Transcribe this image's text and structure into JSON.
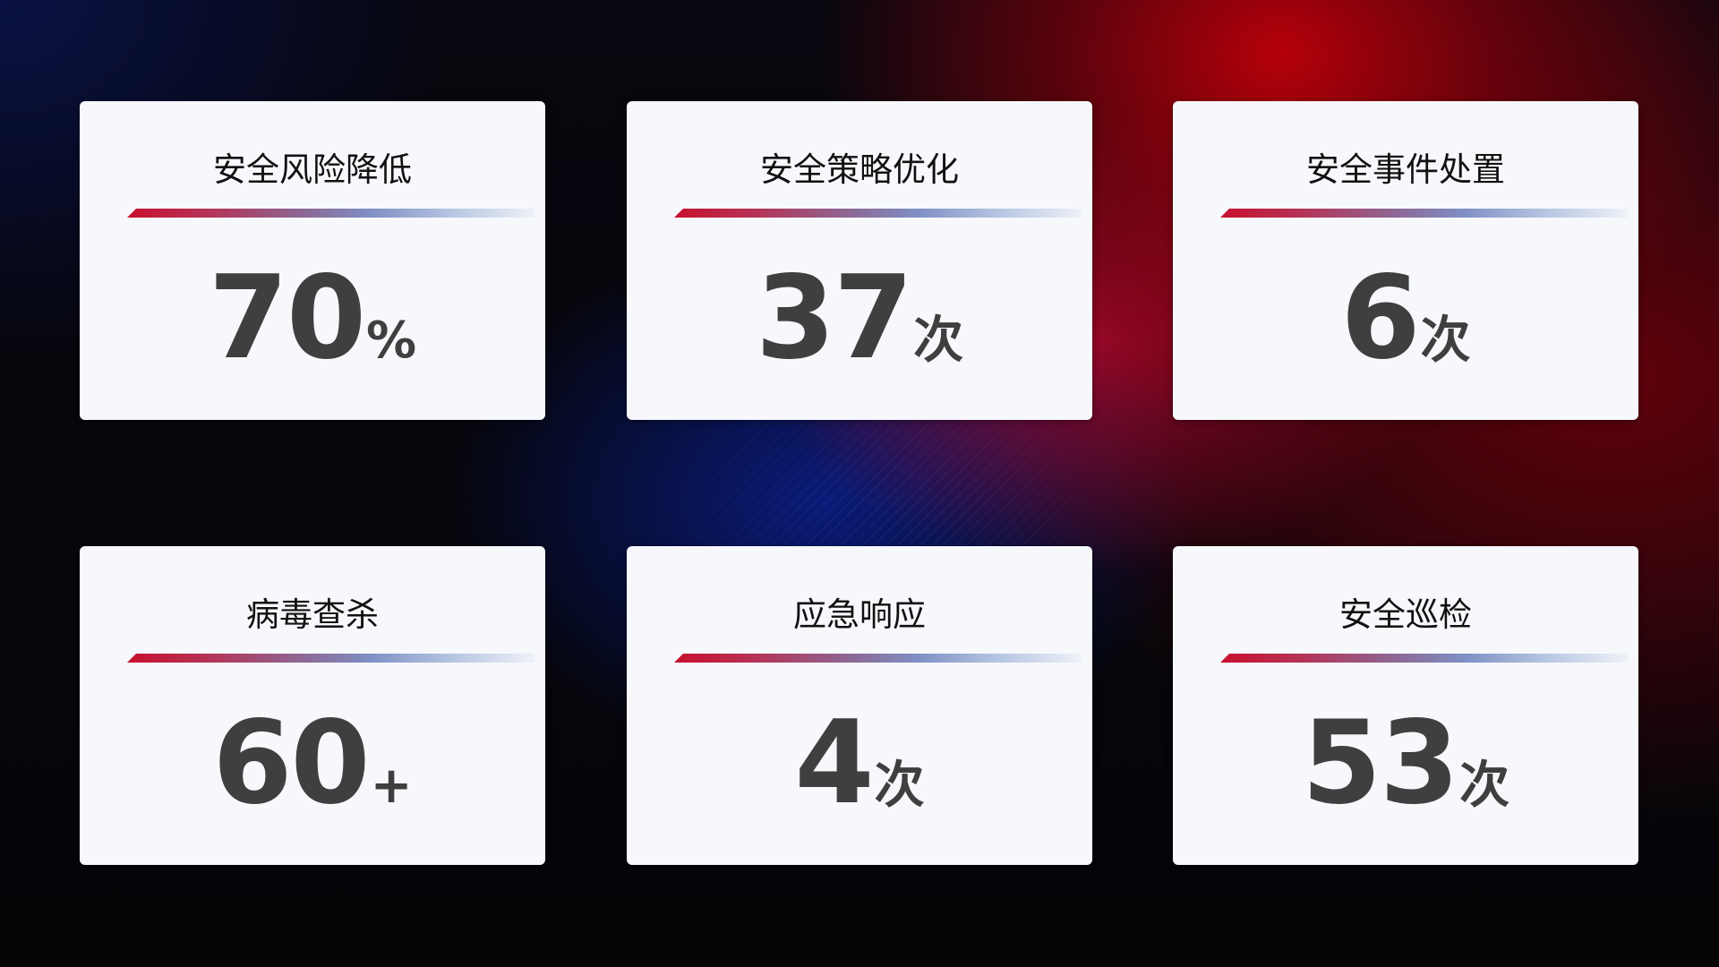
{
  "cards": [
    {
      "title": "安全风险降低",
      "value": "70",
      "unit": "%"
    },
    {
      "title": "安全策略优化",
      "value": "37",
      "unit": "次"
    },
    {
      "title": "安全事件处置",
      "value": "6",
      "unit": "次"
    },
    {
      "title": "病毒查杀",
      "value": "60",
      "unit": "+"
    },
    {
      "title": "应急响应",
      "value": "4",
      "unit": "次"
    },
    {
      "title": "安全巡检",
      "value": "53",
      "unit": "次"
    }
  ],
  "colors": {
    "accent_red": "#c8102e",
    "accent_blue": "#7f90c4",
    "card_bg": "#f6f8fc",
    "value_text": "#3f3f3f"
  }
}
